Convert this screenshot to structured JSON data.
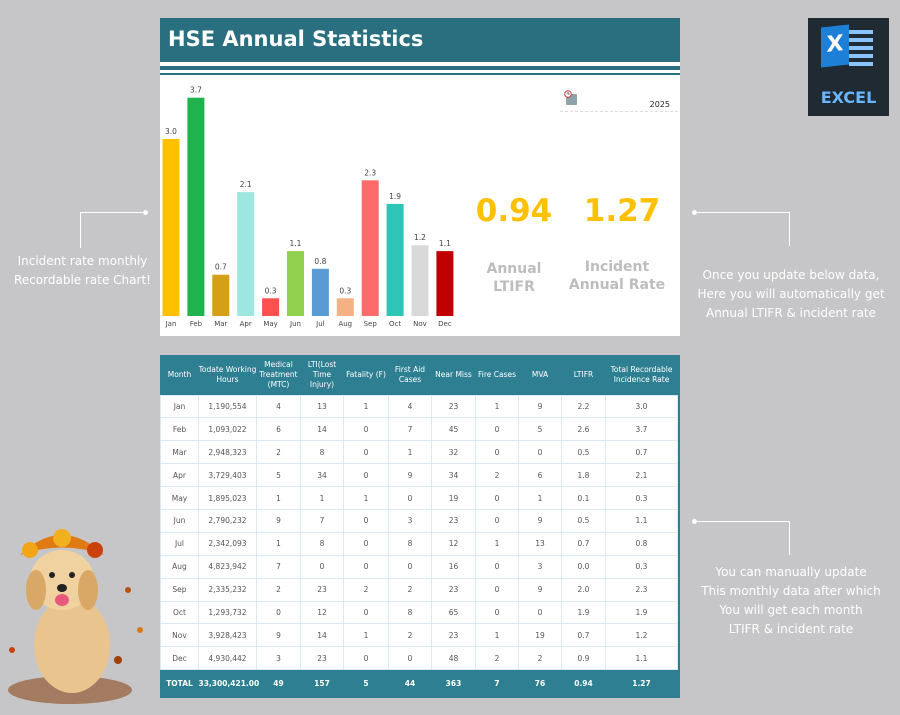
{
  "header": {
    "title": "HSE Annual Statistics"
  },
  "year": "2025",
  "kpis": {
    "ltifr_value": "0.94",
    "ltifr_label_1": "Annual",
    "ltifr_label_2": "LTIFR",
    "rate_value": "1.27",
    "rate_label_1": "Incident",
    "rate_label_2": "Annual Rate"
  },
  "notes": {
    "left_1": "Incident rate monthly",
    "left_2": "Recordable rate Chart!",
    "right_top": [
      "Once you update below data,",
      "Here you will automatically get",
      "Annual LTIFR & incident rate"
    ],
    "right_bottom": [
      "You can manually update",
      "This monthly data after which",
      "You will get each month",
      "LTIFR & incident rate"
    ]
  },
  "logo": {
    "text": "EXCEL",
    "letter": "X"
  },
  "chart_data": {
    "type": "bar",
    "categories": [
      "Jan",
      "Feb",
      "Mar",
      "Apr",
      "May",
      "Jun",
      "Jul",
      "Aug",
      "Sep",
      "Oct",
      "Nov",
      "Dec"
    ],
    "values": [
      3.0,
      3.7,
      0.7,
      2.1,
      0.3,
      1.1,
      0.8,
      0.3,
      2.3,
      1.9,
      1.2,
      1.1
    ],
    "colors": [
      "#ffc000",
      "#1fb44e",
      "#d4a017",
      "#9ee6e0",
      "#ff5050",
      "#92d050",
      "#5b9bd5",
      "#f4b183",
      "#ff6b6b",
      "#2ec4b6",
      "#d9d9d9",
      "#c00000"
    ],
    "data_labels": true,
    "grid": false
  },
  "table": {
    "columns": [
      "Month",
      "Todate Working Hours",
      "Medical Treatment (MTC)",
      "LTI(Lost Time Injury)",
      "Fatality (F)",
      "First Aid Cases",
      "Near Miss",
      "Fire Cases",
      "MVA",
      "LTIFR",
      "Total Recordable Incidence Rate"
    ],
    "rows": [
      [
        "Jan",
        "1,190,554",
        "4",
        "13",
        "1",
        "4",
        "23",
        "1",
        "9",
        "2.2",
        "3.0"
      ],
      [
        "Feb",
        "1,093,022",
        "6",
        "14",
        "0",
        "7",
        "45",
        "0",
        "5",
        "2.6",
        "3.7"
      ],
      [
        "Mar",
        "2,948,323",
        "2",
        "8",
        "0",
        "1",
        "32",
        "0",
        "0",
        "0.5",
        "0.7"
      ],
      [
        "Apr",
        "3,729,403",
        "5",
        "34",
        "0",
        "9",
        "34",
        "2",
        "6",
        "1.8",
        "2.1"
      ],
      [
        "May",
        "1,895,023",
        "1",
        "1",
        "1",
        "0",
        "19",
        "0",
        "1",
        "0.1",
        "0.3"
      ],
      [
        "Jun",
        "2,790,232",
        "9",
        "7",
        "0",
        "3",
        "23",
        "0",
        "9",
        "0.5",
        "1.1"
      ],
      [
        "Jul",
        "2,342,093",
        "1",
        "8",
        "0",
        "8",
        "12",
        "1",
        "13",
        "0.7",
        "0.8"
      ],
      [
        "Aug",
        "4,823,942",
        "7",
        "0",
        "0",
        "0",
        "16",
        "0",
        "3",
        "0.0",
        "0.3"
      ],
      [
        "Sep",
        "2,335,232",
        "2",
        "23",
        "2",
        "2",
        "23",
        "0",
        "9",
        "2.0",
        "2.3"
      ],
      [
        "Oct",
        "1,293,732",
        "0",
        "12",
        "0",
        "8",
        "65",
        "0",
        "0",
        "1.9",
        "1.9"
      ],
      [
        "Nov",
        "3,928,423",
        "9",
        "14",
        "1",
        "2",
        "23",
        "1",
        "19",
        "0.7",
        "1.2"
      ],
      [
        "Dec",
        "4,930,442",
        "3",
        "23",
        "0",
        "0",
        "48",
        "2",
        "2",
        "0.9",
        "1.1"
      ]
    ],
    "total": [
      "TOTAL",
      "33,300,421.00",
      "49",
      "157",
      "5",
      "44",
      "363",
      "7",
      "76",
      "0.94",
      "1.27"
    ]
  }
}
